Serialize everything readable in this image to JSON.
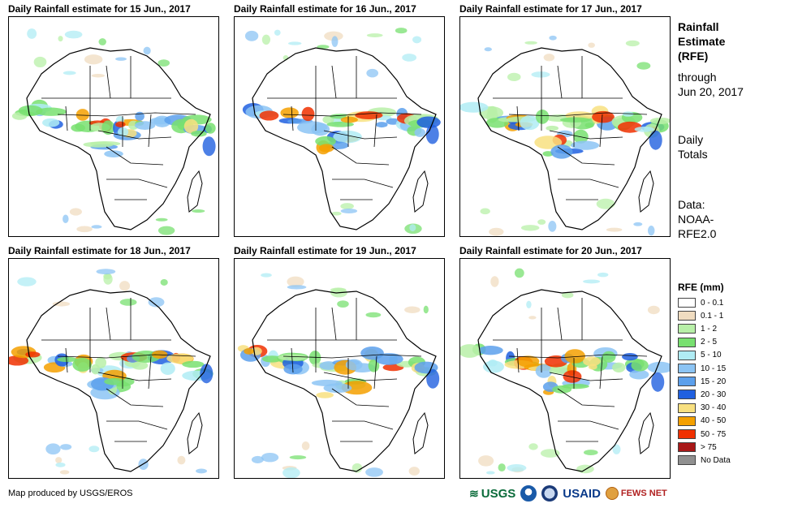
{
  "panels": [
    {
      "title": "Daily Rainfall estimate for 15 Jun., 2017"
    },
    {
      "title": "Daily Rainfall estimate for 16 Jun., 2017"
    },
    {
      "title": "Daily Rainfall estimate for 17 Jun., 2017"
    },
    {
      "title": "Daily Rainfall estimate for 18 Jun., 2017"
    },
    {
      "title": "Daily Rainfall estimate for 19 Jun., 2017"
    },
    {
      "title": "Daily Rainfall estimate for 20 Jun., 2017"
    }
  ],
  "sidebar": {
    "title_line1": "Rainfall",
    "title_line2": "Estimate",
    "title_line3": "(RFE)",
    "through_label": "through",
    "through_date": "Jun 20, 2017",
    "totals_line1": "Daily",
    "totals_line2": "Totals",
    "data_line1": "Data:",
    "data_line2": "NOAA-",
    "data_line3": "RFE2.0"
  },
  "legend": {
    "title": "RFE (mm)",
    "items": [
      {
        "label": "0 - 0.1",
        "color": "#ffffff"
      },
      {
        "label": "0.1 - 1",
        "color": "#f0dcc0"
      },
      {
        "label": "1 - 2",
        "color": "#b8f0a8"
      },
      {
        "label": "2 - 5",
        "color": "#78e070"
      },
      {
        "label": "5 - 10",
        "color": "#b0ecf4"
      },
      {
        "label": "10 - 15",
        "color": "#8cc4f4"
      },
      {
        "label": "15 - 20",
        "color": "#5ca0ec"
      },
      {
        "label": "20 - 30",
        "color": "#2060e0"
      },
      {
        "label": "30 - 40",
        "color": "#f8e080"
      },
      {
        "label": "40 - 50",
        "color": "#f4a000"
      },
      {
        "label": "50 - 75",
        "color": "#f03000"
      },
      {
        "label": "> 75",
        "color": "#a81818"
      },
      {
        "label": "No Data",
        "color": "#909090"
      }
    ]
  },
  "credit": "Map produced by USGS/EROS",
  "logos": {
    "usgs": "USGS",
    "usaid": "USAID",
    "fewsnet": "FEWS NET"
  }
}
